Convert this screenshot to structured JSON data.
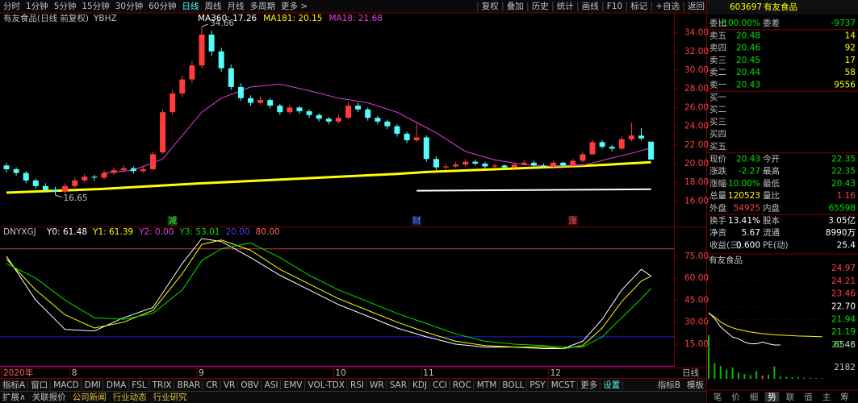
{
  "toolbar": {
    "left": [
      "分时",
      "1分钟",
      "5分钟",
      "15分钟",
      "30分钟",
      "60分钟",
      "日线",
      "周线",
      "月线",
      "多周期",
      "更多 >"
    ],
    "active_index": 6,
    "right": [
      "复权",
      "叠加",
      "历史",
      "统计",
      "画线",
      "F10",
      "标记",
      "+自选",
      "返回"
    ]
  },
  "main": {
    "title": "有友食品(日线 前复权)",
    "indicator": "YBHZ",
    "price_ticks": [
      {
        "value": 16,
        "label": "16.00"
      },
      {
        "value": 18,
        "label": "18.00"
      },
      {
        "value": 20,
        "label": "20.00"
      },
      {
        "value": 22,
        "label": "22.00"
      },
      {
        "value": 24,
        "label": "24.00"
      },
      {
        "value": 26,
        "label": "26.00"
      },
      {
        "value": 28,
        "label": "28.00"
      },
      {
        "value": 30,
        "label": "30.00"
      },
      {
        "value": 32,
        "label": "32.00"
      },
      {
        "value": 34,
        "label": "34.00"
      }
    ],
    "up_color": "#ff3b3b",
    "down_color": "#54fcfc",
    "candles": [
      [
        19.8,
        20.1,
        19.1,
        19.4
      ],
      [
        19.4,
        19.6,
        18.7,
        19.0
      ],
      [
        19.0,
        19.2,
        17.9,
        18.2
      ],
      [
        18.2,
        18.4,
        17.3,
        17.6
      ],
      [
        17.6,
        17.9,
        16.9,
        17.2
      ],
      [
        17.2,
        17.5,
        16.65,
        17.0
      ],
      [
        17.0,
        17.9,
        16.8,
        17.6
      ],
      [
        17.6,
        18.5,
        17.4,
        18.2
      ],
      [
        18.2,
        18.9,
        18.0,
        18.6
      ],
      [
        18.6,
        18.8,
        18.2,
        18.5
      ],
      [
        18.5,
        19.3,
        18.3,
        19.0
      ],
      [
        19.0,
        19.6,
        18.8,
        19.3
      ],
      [
        19.3,
        19.8,
        19.1,
        19.5
      ],
      [
        19.5,
        19.7,
        18.9,
        19.2
      ],
      [
        19.2,
        19.7,
        19.0,
        19.4
      ],
      [
        19.4,
        21.3,
        19.3,
        21.0
      ],
      [
        21.2,
        25.8,
        21.0,
        25.5
      ],
      [
        25.5,
        27.9,
        25.2,
        27.5
      ],
      [
        27.5,
        29.4,
        27.1,
        29.0
      ],
      [
        29.0,
        31.0,
        28.6,
        30.5
      ],
      [
        30.5,
        34.66,
        30.2,
        33.8
      ],
      [
        33.8,
        34.2,
        31.5,
        32.0
      ],
      [
        32.0,
        32.4,
        29.8,
        30.2
      ],
      [
        30.2,
        30.6,
        27.9,
        28.2
      ],
      [
        28.2,
        28.6,
        26.7,
        27.0
      ],
      [
        27.0,
        27.3,
        26.2,
        26.5
      ],
      [
        26.5,
        27.2,
        26.3,
        26.8
      ],
      [
        26.8,
        27.0,
        25.9,
        26.2
      ],
      [
        26.2,
        26.4,
        25.2,
        25.5
      ],
      [
        25.5,
        26.3,
        25.3,
        26.0
      ],
      [
        26.0,
        26.2,
        25.3,
        25.6
      ],
      [
        25.6,
        25.8,
        24.9,
        25.2
      ],
      [
        25.2,
        25.4,
        24.5,
        24.8
      ],
      [
        24.8,
        25.0,
        24.2,
        24.5
      ],
      [
        24.5,
        25.2,
        24.3,
        24.9
      ],
      [
        24.9,
        26.6,
        24.8,
        26.2
      ],
      [
        26.2,
        26.5,
        25.5,
        25.8
      ],
      [
        25.8,
        26.0,
        24.6,
        24.9
      ],
      [
        24.9,
        25.1,
        24.2,
        24.5
      ],
      [
        24.5,
        24.7,
        23.7,
        24.0
      ],
      [
        24.0,
        24.2,
        22.9,
        23.2
      ],
      [
        23.2,
        23.4,
        22.2,
        22.5
      ],
      [
        22.5,
        24.3,
        22.3,
        22.8
      ],
      [
        22.8,
        23.0,
        20.2,
        20.5
      ],
      [
        20.5,
        20.8,
        19.3,
        19.6
      ],
      [
        19.6,
        20.0,
        19.4,
        19.7
      ],
      [
        19.7,
        20.2,
        19.5,
        19.9
      ],
      [
        19.9,
        20.5,
        19.7,
        20.2
      ],
      [
        20.2,
        20.4,
        19.8,
        20.0
      ],
      [
        20.0,
        20.2,
        19.5,
        19.7
      ],
      [
        19.7,
        20.0,
        19.5,
        19.8
      ],
      [
        19.8,
        19.9,
        19.4,
        19.6
      ],
      [
        19.6,
        20.1,
        19.5,
        19.9
      ],
      [
        19.9,
        20.4,
        19.8,
        20.1
      ],
      [
        20.1,
        20.3,
        19.6,
        19.8
      ],
      [
        19.8,
        20.0,
        19.5,
        19.7
      ],
      [
        19.7,
        20.3,
        19.6,
        20.1
      ],
      [
        20.1,
        20.2,
        19.6,
        19.8
      ],
      [
        19.8,
        20.5,
        19.7,
        20.3
      ],
      [
        20.3,
        21.3,
        20.1,
        21.0
      ],
      [
        21.0,
        22.6,
        20.9,
        22.3
      ],
      [
        22.3,
        22.5,
        21.6,
        21.8
      ],
      [
        21.8,
        22.0,
        21.3,
        21.6
      ],
      [
        21.6,
        22.9,
        21.5,
        22.6
      ],
      [
        22.6,
        24.4,
        22.4,
        23.0
      ],
      [
        23.0,
        23.8,
        22.5,
        22.7
      ],
      [
        22.35,
        22.35,
        20.43,
        20.43
      ]
    ],
    "ma": [
      {
        "label": "MA360: 17.26",
        "color": "#ffffff",
        "width": 2,
        "x": [
          42,
          66
        ],
        "values": [
          17.1,
          17.26
        ]
      },
      {
        "label": "MA181: 20.15",
        "color": "#ffff00",
        "width": 3,
        "x": [
          0,
          10,
          20,
          30,
          40,
          43,
          50,
          60,
          66
        ],
        "values": [
          16.9,
          17.3,
          17.9,
          18.4,
          18.9,
          19.1,
          19.4,
          19.8,
          20.15
        ]
      },
      {
        "label": "MA18: 21.68",
        "color": "#e040e0",
        "width": 1,
        "x": [
          10,
          13,
          16,
          18,
          20,
          22,
          25,
          28,
          31,
          34,
          37,
          40,
          42,
          44,
          47,
          50,
          53,
          56,
          59,
          62,
          64,
          66
        ],
        "values": [
          19.0,
          19.3,
          20.5,
          23.0,
          25.5,
          27.0,
          28.2,
          28.5,
          27.8,
          27.0,
          26.5,
          25.5,
          24.4,
          23.3,
          21.3,
          20.4,
          19.9,
          19.7,
          19.8,
          20.6,
          21.1,
          21.68
        ]
      }
    ],
    "annotations": [
      {
        "text": "34.66",
        "index": 20,
        "value": 34.66
      },
      {
        "text": "16.65",
        "index": 5,
        "value": 16.65
      }
    ],
    "events": [
      {
        "text": "减",
        "index": 17
      },
      {
        "text": "财",
        "index": 42
      },
      {
        "text": "涨",
        "index": 58
      }
    ]
  },
  "oscillator": {
    "title": "DNYXGJ",
    "labels": [
      {
        "text": "Y0: 61.48",
        "color": "#ffffff"
      },
      {
        "text": "Y1: 61.39",
        "color": "#ffff00"
      },
      {
        "text": "Y2: 0.00",
        "color": "#e040e0"
      },
      {
        "text": "Y3: 53.01",
        "color": "#00e000"
      },
      {
        "text": "20.00",
        "color": "#4040ff"
      },
      {
        "text": "80.00",
        "color": "#ff6060"
      }
    ],
    "ticks": [
      {
        "value": 15,
        "label": "15.00"
      },
      {
        "value": 30,
        "label": "30.00"
      },
      {
        "value": 45,
        "label": "45.00"
      },
      {
        "value": 60,
        "label": "60.00"
      },
      {
        "value": 75,
        "label": "75.00"
      }
    ],
    "levels": [
      {
        "value": 80,
        "color": "#c04040"
      },
      {
        "value": 20,
        "color": "#2020d0"
      },
      {
        "value": 0,
        "color": "#b020b0"
      }
    ],
    "x": [
      0,
      3,
      6,
      9,
      12,
      15,
      18,
      20,
      22,
      25,
      28,
      31,
      34,
      37,
      40,
      43,
      46,
      49,
      52,
      55,
      57,
      59,
      61,
      63,
      65,
      66
    ],
    "series": [
      {
        "color": "#ffffff",
        "values": [
          75,
          45,
          25,
          24,
          33,
          40,
          70,
          87,
          85,
          74,
          62,
          52,
          42,
          34,
          26,
          20,
          15,
          13,
          13,
          12,
          12,
          17,
          32,
          52,
          66,
          61.48
        ]
      },
      {
        "color": "#ffff00",
        "values": [
          73,
          52,
          35,
          26,
          30,
          38,
          63,
          83,
          86,
          79,
          66,
          56,
          46,
          38,
          30,
          23,
          17,
          14,
          13,
          13,
          12,
          14,
          26,
          44,
          58,
          61.39
        ]
      },
      {
        "color": "#00e000",
        "values": [
          70,
          60,
          45,
          33,
          32,
          36,
          52,
          72,
          80,
          84,
          74,
          62,
          52,
          44,
          36,
          29,
          22,
          17,
          15,
          14,
          13,
          13,
          20,
          33,
          46,
          53.01
        ]
      }
    ]
  },
  "dates": {
    "labels": [
      {
        "label": "2020年",
        "index": 0
      },
      {
        "label": "8",
        "index": 7
      },
      {
        "label": "9",
        "index": 20
      },
      {
        "label": "10",
        "index": 34
      },
      {
        "label": "11",
        "index": 43
      },
      {
        "label": "12",
        "index": 56
      }
    ],
    "period": "日线"
  },
  "tabs": {
    "row1": [
      "指标A",
      "窗口",
      "MACD",
      "DMI",
      "DMA",
      "FSL",
      "TRIX",
      "BRAR",
      "CR",
      "VR",
      "OBV",
      "ASI",
      "EMV",
      "VOL-TDX",
      "RSI",
      "WR",
      "SAR",
      "KDJ",
      "CCI",
      "ROC",
      "MTM",
      "BOLL",
      "PSY",
      "MCST",
      "更多",
      "设置"
    ],
    "active_index": 25,
    "row1_right": [
      "指标B",
      "模板"
    ],
    "row2": [
      "扩展∧",
      "关联报价",
      "公司新闻",
      "行业动态",
      "行业研究"
    ]
  },
  "quote": {
    "code": "603697",
    "name": "有友食品",
    "rows": [
      {
        "cells": [
          "委比",
          "-100.00%",
          "委差",
          "-9737"
        ],
        "colors": [
          "#c0c0c0",
          "#00e000",
          "#c0c0c0",
          "#00e000"
        ]
      },
      {
        "cells": [
          "卖五",
          "20.48",
          "14"
        ],
        "colors": [
          "#c0c0c0",
          "#00e000",
          "#ffff00"
        ]
      },
      {
        "cells": [
          "卖四",
          "20.46",
          "92"
        ],
        "colors": [
          "#c0c0c0",
          "#00e000",
          "#ffff00"
        ]
      },
      {
        "cells": [
          "卖三",
          "20.45",
          "17"
        ],
        "colors": [
          "#c0c0c0",
          "#00e000",
          "#ffff00"
        ]
      },
      {
        "cells": [
          "卖二",
          "20.44",
          "58"
        ],
        "colors": [
          "#c0c0c0",
          "#00e000",
          "#ffff00"
        ]
      },
      {
        "cells": [
          "卖一",
          "20.43",
          "9556"
        ],
        "colors": [
          "#c0c0c0",
          "#00e000",
          "#ffff00"
        ]
      },
      {
        "cells": [
          "买一"
        ],
        "colors": [
          "#c0c0c0"
        ]
      },
      {
        "cells": [
          "买二"
        ],
        "colors": [
          "#c0c0c0"
        ]
      },
      {
        "cells": [
          "买三"
        ],
        "colors": [
          "#c0c0c0"
        ]
      },
      {
        "cells": [
          "买四"
        ],
        "colors": [
          "#c0c0c0"
        ]
      },
      {
        "cells": [
          "买五"
        ],
        "colors": [
          "#c0c0c0"
        ]
      },
      {
        "cells": [
          "现价",
          "20.43",
          "今开",
          "22.35"
        ],
        "colors": [
          "#c0c0c0",
          "#00e000",
          "#c0c0c0",
          "#00e000"
        ]
      },
      {
        "cells": [
          "涨跌",
          "-2.27",
          "最高",
          "22.35"
        ],
        "colors": [
          "#c0c0c0",
          "#00e000",
          "#c0c0c0",
          "#00e000"
        ]
      },
      {
        "cells": [
          "涨幅",
          "-10.00%",
          "最低",
          "20.43"
        ],
        "colors": [
          "#c0c0c0",
          "#00e000",
          "#c0c0c0",
          "#00e000"
        ]
      },
      {
        "cells": [
          "总量",
          "120523",
          "量比",
          "1.16"
        ],
        "colors": [
          "#c0c0c0",
          "#ffff00",
          "#c0c0c0",
          "#ff4040"
        ]
      },
      {
        "cells": [
          "外盘",
          "54925",
          "内盘",
          "65598"
        ],
        "colors": [
          "#c0c0c0",
          "#ff4040",
          "#c0c0c0",
          "#00e000"
        ]
      },
      {
        "cells": [
          "换手",
          "13.41%",
          "股本",
          "3.05亿"
        ],
        "colors": [
          "#c0c0c0",
          "#ffffff",
          "#c0c0c0",
          "#ffffff"
        ]
      },
      {
        "cells": [
          "净资",
          "5.67",
          "流通",
          "8990万"
        ],
        "colors": [
          "#c0c0c0",
          "#ffffff",
          "#c0c0c0",
          "#ffffff"
        ]
      },
      {
        "cells": [
          "收益(三)",
          "0.600",
          "PE(动)",
          "25.4"
        ],
        "colors": [
          "#c0c0c0",
          "#ffffff",
          "#c0c0c0",
          "#ffffff"
        ]
      }
    ]
  },
  "mini": {
    "title": "有友食品",
    "price_ticks": [
      {
        "value": 24.97,
        "color": "#ff4040"
      },
      {
        "value": 24.21,
        "color": "#ff4040"
      },
      {
        "value": 23.46,
        "color": "#ff4040"
      },
      {
        "value": {
          "value": 22.7,
          "label": "22.70"
        },
        "color": "#ffffff"
      },
      {
        "value": 21.94,
        "color": "#00e000"
      },
      {
        "value": 21.19,
        "color": "#00e000"
      },
      {
        "value": 20.43,
        "color": "#00e000"
      }
    ],
    "price": [
      22.35,
      22.0,
      21.5,
      21.2,
      20.9,
      20.8,
      20.6,
      20.5,
      20.5,
      20.6,
      20.5,
      20.43,
      20.43,
      null,
      null,
      null,
      null,
      null,
      null,
      null
    ],
    "average": [
      22.3,
      22.1,
      21.8,
      21.6,
      21.45,
      21.35,
      21.27,
      21.2,
      21.15,
      21.1,
      21.07,
      21.04,
      21.02,
      21.0,
      20.98,
      20.96,
      20.95,
      20.94,
      20.93,
      20.92
    ],
    "volume_ticks": [
      6546,
      2182
    ],
    "volume_ylim": [
      0,
      8728
    ],
    "volume": [
      8500,
      3000,
      2500,
      1800,
      2200,
      1200,
      900,
      700,
      1500,
      600,
      800,
      2400,
      500,
      400,
      300,
      300,
      200,
      200,
      150,
      100
    ]
  },
  "bottom_icons": [
    "笔",
    "价",
    "细",
    "势",
    "联",
    "值",
    "主",
    "筹"
  ],
  "bottom_active": 3
}
